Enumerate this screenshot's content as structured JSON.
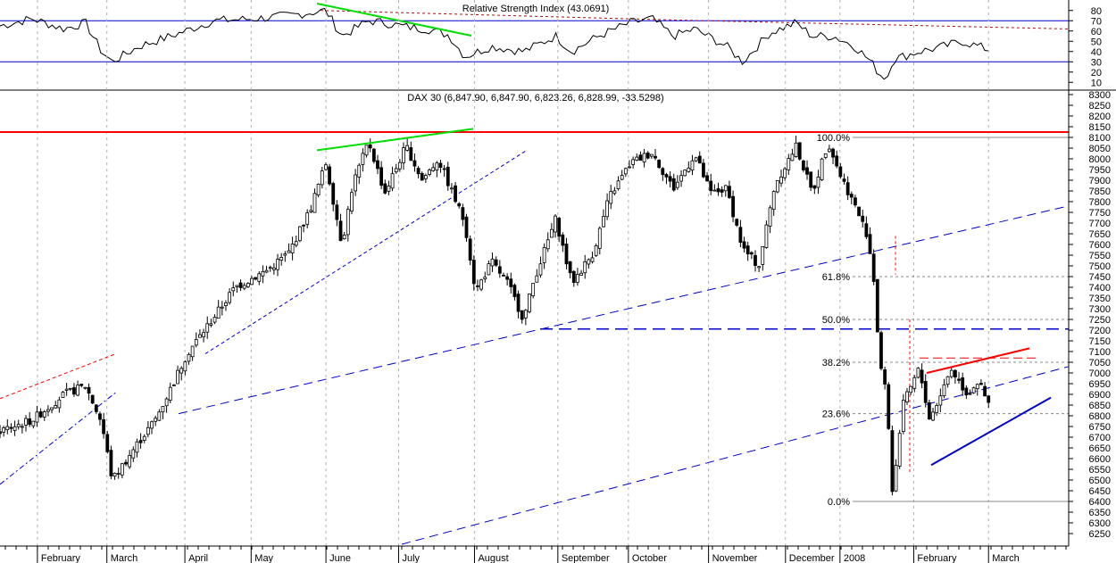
{
  "rsi_panel": {
    "title": "Relative Strength Index (43.0691)",
    "yticks": [
      10,
      20,
      30,
      40,
      50,
      60,
      70,
      80
    ],
    "ylim": [
      5,
      85
    ],
    "overbought": 70,
    "oversold": 30
  },
  "price_panel": {
    "title": "DAX 30 (6,847.90, 6,847.90, 6,823.26, 6,828.99, -33.5298)",
    "ylim": [
      6200,
      8300
    ],
    "yticks": [
      6250,
      6300,
      6350,
      6400,
      6450,
      6500,
      6550,
      6600,
      6650,
      6700,
      6750,
      6800,
      6850,
      6900,
      6950,
      7000,
      7050,
      7100,
      7150,
      7200,
      7250,
      7300,
      7350,
      7400,
      7450,
      7500,
      7550,
      7600,
      7650,
      7700,
      7750,
      7800,
      7850,
      7900,
      7950,
      8000,
      8050,
      8100,
      8150,
      8200,
      8250,
      8300
    ]
  },
  "x_axis": {
    "months": [
      {
        "label": "February",
        "t": 0.035
      },
      {
        "label": "March",
        "t": 0.1
      },
      {
        "label": "April",
        "t": 0.173
      },
      {
        "label": "May",
        "t": 0.235
      },
      {
        "label": "June",
        "t": 0.305
      },
      {
        "label": "July",
        "t": 0.373
      },
      {
        "label": "August",
        "t": 0.444
      },
      {
        "label": "September",
        "t": 0.522
      },
      {
        "label": "October",
        "t": 0.588
      },
      {
        "label": "November",
        "t": 0.663
      },
      {
        "label": "December",
        "t": 0.735
      },
      {
        "label": "2008",
        "t": 0.786
      },
      {
        "label": "February",
        "t": 0.855
      },
      {
        "label": "March",
        "t": 0.925
      }
    ]
  },
  "fibonacci": [
    {
      "label": "100.0%",
      "value": 8100
    },
    {
      "label": "61.8%",
      "value": 7450
    },
    {
      "label": "50.0%",
      "value": 7250
    },
    {
      "label": "38.2%",
      "value": 7050
    },
    {
      "label": "23.6%",
      "value": 6810
    },
    {
      "label": "0.0%",
      "value": 6400
    }
  ],
  "colors": {
    "resistance": "#ff0000",
    "trend": "#0000cc",
    "divergence": "#00dd00",
    "grid": "#b0b0b0",
    "fib": "#888888"
  },
  "chart_data": {
    "type": "candlestick",
    "title": "DAX 30 (6,847.90, 6,847.90, 6,823.26, 6,828.99, -33.5298)",
    "last": {
      "open": 6847.9,
      "high": 6847.9,
      "low": 6823.26,
      "close": 6828.99,
      "change": -33.5298
    },
    "rsi_last": 43.0691,
    "ylim": [
      6200,
      8300
    ],
    "resistance_level": 8125,
    "breakdown_level": 7205,
    "anchors": [
      [
        0,
        6730
      ],
      [
        0.03,
        6780
      ],
      [
        0.06,
        6900
      ],
      [
        0.08,
        6940
      ],
      [
        0.095,
        6770
      ],
      [
        0.105,
        6500
      ],
      [
        0.13,
        6680
      ],
      [
        0.145,
        6780
      ],
      [
        0.16,
        6930
      ],
      [
        0.175,
        7090
      ],
      [
        0.2,
        7260
      ],
      [
        0.22,
        7400
      ],
      [
        0.25,
        7480
      ],
      [
        0.27,
        7560
      ],
      [
        0.29,
        7760
      ],
      [
        0.305,
        7980
      ],
      [
        0.32,
        7600
      ],
      [
        0.33,
        7880
      ],
      [
        0.345,
        8080
      ],
      [
        0.36,
        7840
      ],
      [
        0.38,
        8060
      ],
      [
        0.395,
        7900
      ],
      [
        0.41,
        8000
      ],
      [
        0.425,
        7820
      ],
      [
        0.435,
        7700
      ],
      [
        0.445,
        7380
      ],
      [
        0.46,
        7520
      ],
      [
        0.475,
        7420
      ],
      [
        0.49,
        7250
      ],
      [
        0.5,
        7440
      ],
      [
        0.52,
        7720
      ],
      [
        0.535,
        7420
      ],
      [
        0.555,
        7560
      ],
      [
        0.57,
        7820
      ],
      [
        0.59,
        7980
      ],
      [
        0.61,
        8030
      ],
      [
        0.63,
        7860
      ],
      [
        0.65,
        8020
      ],
      [
        0.665,
        7840
      ],
      [
        0.68,
        7860
      ],
      [
        0.695,
        7580
      ],
      [
        0.71,
        7500
      ],
      [
        0.725,
        7880
      ],
      [
        0.745,
        8060
      ],
      [
        0.76,
        7840
      ],
      [
        0.775,
        8080
      ],
      [
        0.785,
        7940
      ],
      [
        0.8,
        7780
      ],
      [
        0.812,
        7640
      ],
      [
        0.818,
        7420
      ],
      [
        0.823,
        7060
      ],
      [
        0.83,
        6880
      ],
      [
        0.835,
        6440
      ],
      [
        0.845,
        6850
      ],
      [
        0.86,
        7020
      ],
      [
        0.87,
        6780
      ],
      [
        0.89,
        7020
      ],
      [
        0.905,
        6900
      ],
      [
        0.915,
        6960
      ],
      [
        0.925,
        6850
      ]
    ],
    "rsi_anchors": [
      [
        0,
        65
      ],
      [
        0.03,
        72
      ],
      [
        0.06,
        62
      ],
      [
        0.08,
        68
      ],
      [
        0.095,
        40
      ],
      [
        0.105,
        30
      ],
      [
        0.13,
        45
      ],
      [
        0.16,
        55
      ],
      [
        0.2,
        70
      ],
      [
        0.24,
        72
      ],
      [
        0.27,
        75
      ],
      [
        0.305,
        80
      ],
      [
        0.32,
        55
      ],
      [
        0.345,
        70
      ],
      [
        0.36,
        68
      ],
      [
        0.38,
        64
      ],
      [
        0.4,
        62
      ],
      [
        0.42,
        56
      ],
      [
        0.435,
        35
      ],
      [
        0.46,
        45
      ],
      [
        0.49,
        40
      ],
      [
        0.52,
        55
      ],
      [
        0.535,
        40
      ],
      [
        0.56,
        55
      ],
      [
        0.59,
        68
      ],
      [
        0.61,
        72
      ],
      [
        0.63,
        55
      ],
      [
        0.65,
        62
      ],
      [
        0.68,
        45
      ],
      [
        0.695,
        30
      ],
      [
        0.72,
        58
      ],
      [
        0.745,
        68
      ],
      [
        0.76,
        55
      ],
      [
        0.78,
        55
      ],
      [
        0.8,
        45
      ],
      [
        0.815,
        30
      ],
      [
        0.823,
        18
      ],
      [
        0.83,
        14
      ],
      [
        0.835,
        32
      ],
      [
        0.86,
        40
      ],
      [
        0.88,
        44
      ],
      [
        0.9,
        50
      ],
      [
        0.925,
        42
      ]
    ]
  }
}
